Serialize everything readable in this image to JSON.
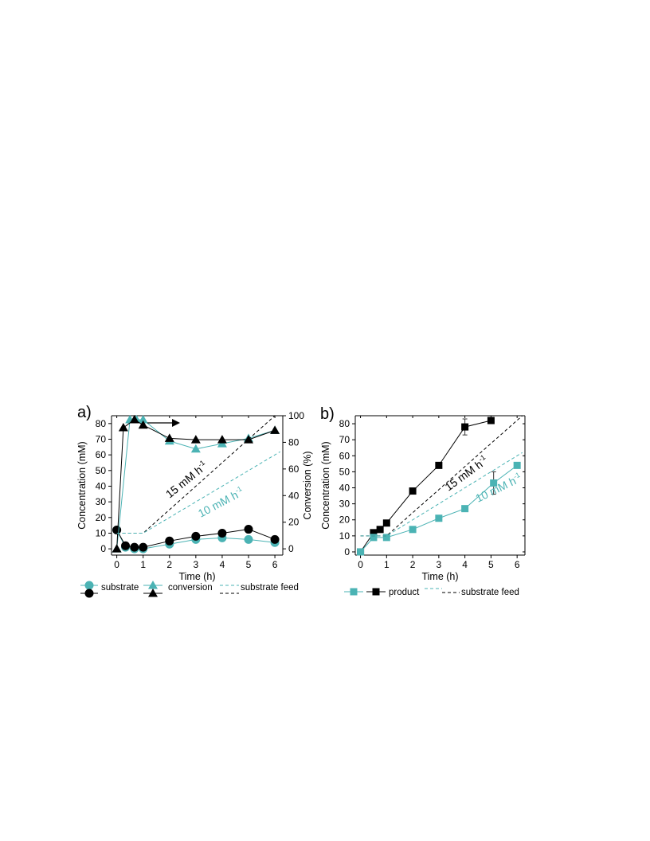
{
  "colors": {
    "teal": "#4bb3b4",
    "black": "#000000"
  },
  "chart_data": [
    {
      "panel_label": "a)",
      "type": "line",
      "xlabel": "Time (h)",
      "ylabel": "Concentration (mM)",
      "y2label": "Conversion (%)",
      "xlim": [
        -0.2,
        6.3
      ],
      "ylim": [
        -4,
        85
      ],
      "y2lim": [
        -4.71,
        100
      ],
      "x_ticks": [
        0,
        1,
        2,
        3,
        4,
        5,
        6
      ],
      "y_ticks": [
        0,
        10,
        20,
        30,
        40,
        50,
        60,
        70,
        80
      ],
      "y2_ticks": [
        0,
        20,
        40,
        60,
        80,
        100
      ],
      "series": [
        {
          "name": "substrate",
          "color": "#4bb3b4",
          "marker": "circle",
          "axis": "left",
          "x": [
            0,
            0.33,
            0.67,
            1,
            2,
            3,
            4,
            5,
            6
          ],
          "y": [
            12,
            1,
            0,
            0,
            3,
            6,
            7,
            6,
            4
          ]
        },
        {
          "name": "substrate",
          "color": "#000000",
          "marker": "circle",
          "axis": "left",
          "x": [
            0,
            0.33,
            0.67,
            1,
            2,
            3,
            4,
            5,
            6
          ],
          "y": [
            12,
            2,
            1,
            1,
            5,
            8,
            10,
            12.5,
            6
          ]
        },
        {
          "name": "conversion",
          "color": "#4bb3b4",
          "marker": "triangle",
          "axis": "right",
          "x": [
            0,
            0.5,
            0.75,
            1,
            2,
            3,
            4,
            5,
            6
          ],
          "y": [
            0,
            97,
            97,
            97,
            81,
            75,
            79,
            83,
            89
          ]
        },
        {
          "name": "conversion",
          "color": "#000000",
          "marker": "triangle",
          "axis": "right",
          "x": [
            0,
            0.25,
            0.67,
            1,
            2,
            3,
            4,
            5,
            6
          ],
          "y": [
            0,
            91,
            97,
            93,
            83,
            82,
            82,
            82,
            89
          ]
        },
        {
          "name": "substrate feed",
          "color": "#000000",
          "dashed": true,
          "axis": "left",
          "x": [
            0,
            1,
            6
          ],
          "y": [
            10,
            10,
            85
          ]
        },
        {
          "name": "substrate feed",
          "color": "#4bb3b4",
          "dashed": true,
          "axis": "left",
          "x": [
            0,
            1,
            6.2
          ],
          "y": [
            10,
            10,
            62
          ]
        }
      ],
      "annotations": [
        {
          "text": "15 mM h",
          "sup": "-1",
          "color": "#000000"
        },
        {
          "text": "10 mM h",
          "sup": "-1",
          "color": "#4bb3b4"
        }
      ],
      "legend": [
        {
          "label": "substrate"
        },
        {
          "label": "conversion"
        },
        {
          "label": "substrate feed"
        }
      ]
    },
    {
      "panel_label": "b)",
      "type": "line",
      "xlabel": "Time (h)",
      "ylabel": "Concentration (mM)",
      "xlim": [
        -0.2,
        6.3
      ],
      "ylim": [
        -2,
        85
      ],
      "x_ticks": [
        0,
        1,
        2,
        3,
        4,
        5,
        6
      ],
      "y_ticks": [
        0,
        10,
        20,
        30,
        40,
        50,
        60,
        70,
        80
      ],
      "series": [
        {
          "name": "product",
          "color": "#000000",
          "marker": "square",
          "x": [
            0,
            0.5,
            0.75,
            1,
            2,
            3,
            4,
            5
          ],
          "y": [
            0,
            12,
            14,
            18,
            38,
            54,
            78,
            82
          ],
          "err": [
            0,
            0,
            0,
            0,
            0,
            0,
            5,
            0
          ]
        },
        {
          "name": "product",
          "color": "#4bb3b4",
          "marker": "square",
          "x": [
            0,
            0.5,
            1,
            2,
            3,
            4,
            5.1,
            6
          ],
          "y": [
            0,
            9,
            9,
            14,
            21,
            27,
            43,
            54
          ],
          "err": [
            0,
            0,
            0,
            0,
            0,
            0,
            7,
            0
          ]
        },
        {
          "name": "substrate feed",
          "color": "#000000",
          "dashed": true,
          "x": [
            0,
            1,
            6.2
          ],
          "y": [
            10,
            10,
            85
          ]
        },
        {
          "name": "substrate feed",
          "color": "#4bb3b4",
          "dashed": true,
          "x": [
            0,
            1,
            6.2
          ],
          "y": [
            10,
            10,
            62
          ]
        }
      ],
      "annotations": [
        {
          "text": "15 mM h",
          "sup": "-1",
          "color": "#000000"
        },
        {
          "text": "10 mM h",
          "sup": "-1",
          "color": "#4bb3b4"
        }
      ],
      "legend": [
        {
          "label": "product"
        },
        {
          "label": "substrate feed"
        }
      ]
    }
  ]
}
